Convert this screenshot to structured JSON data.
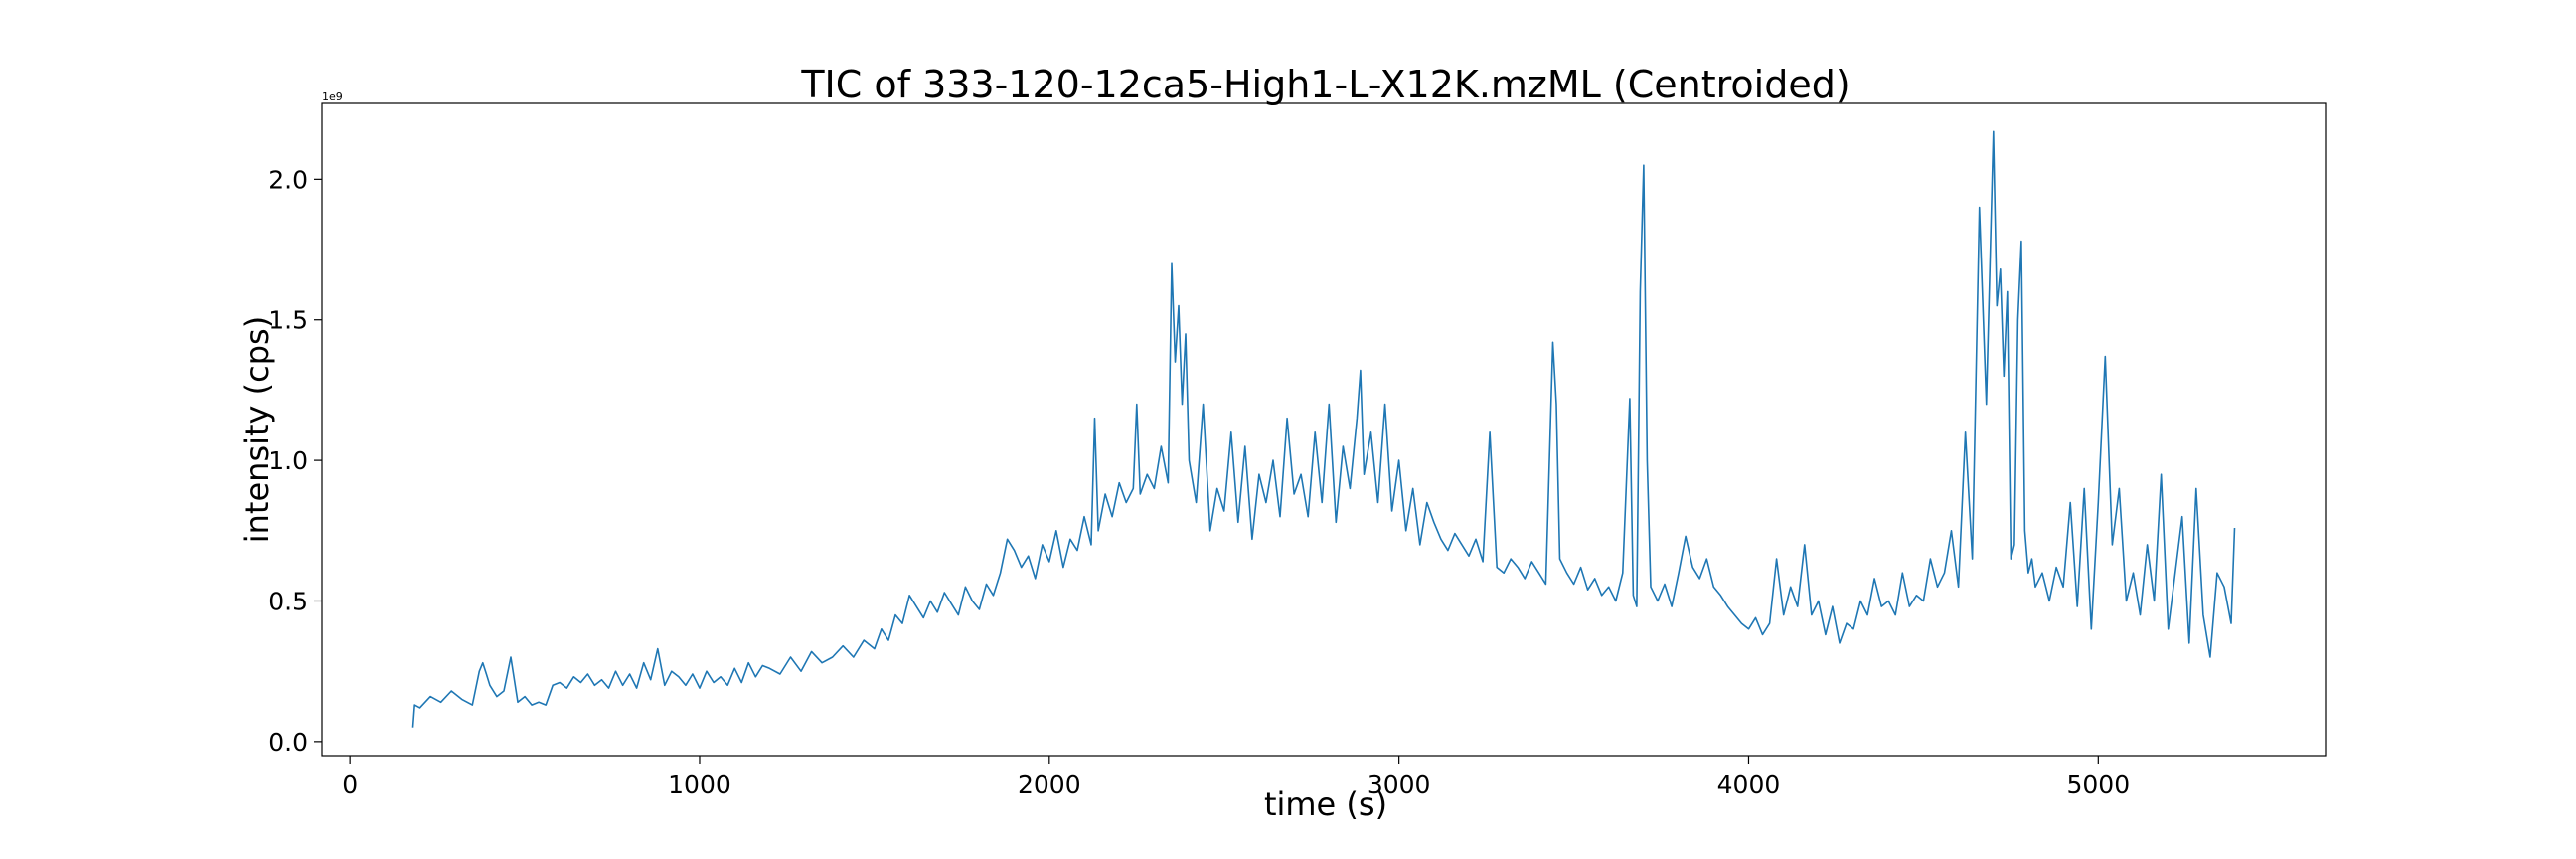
{
  "chart_data": {
    "type": "line",
    "title": "TIC of 333-120-12ca5-High1-L-X12K.mzML (Centroided)",
    "xlabel": "time (s)",
    "ylabel": "intensity (cps)",
    "y_offset_label": "1e9",
    "xlim": [
      -80,
      5650
    ],
    "ylim": [
      -0.05,
      2.27
    ],
    "x_ticks": [
      0,
      1000,
      2000,
      3000,
      4000,
      5000
    ],
    "x_tick_labels": [
      "0",
      "1000",
      "2000",
      "3000",
      "4000",
      "5000"
    ],
    "y_ticks": [
      0.0,
      0.5,
      1.0,
      1.5,
      2.0
    ],
    "y_tick_labels": [
      "0.0",
      "0.5",
      "1.0",
      "1.5",
      "2.0"
    ],
    "grid": false,
    "series": [
      {
        "color": "#1f77b4",
        "x": [
          180,
          185,
          200,
          230,
          260,
          290,
          320,
          350,
          370,
          380,
          390,
          400,
          420,
          440,
          460,
          480,
          500,
          520,
          540,
          560,
          580,
          600,
          620,
          640,
          660,
          680,
          700,
          720,
          740,
          760,
          780,
          800,
          820,
          840,
          860,
          880,
          900,
          920,
          940,
          960,
          980,
          1000,
          1020,
          1040,
          1060,
          1080,
          1100,
          1120,
          1140,
          1160,
          1180,
          1200,
          1230,
          1260,
          1290,
          1320,
          1350,
          1380,
          1410,
          1440,
          1470,
          1500,
          1520,
          1540,
          1560,
          1580,
          1600,
          1620,
          1640,
          1660,
          1680,
          1700,
          1720,
          1740,
          1760,
          1780,
          1800,
          1820,
          1840,
          1860,
          1880,
          1900,
          1920,
          1940,
          1960,
          1980,
          2000,
          2020,
          2040,
          2060,
          2080,
          2100,
          2120,
          2130,
          2140,
          2160,
          2180,
          2200,
          2220,
          2240,
          2250,
          2260,
          2280,
          2300,
          2320,
          2340,
          2350,
          2360,
          2370,
          2380,
          2390,
          2400,
          2420,
          2440,
          2460,
          2480,
          2500,
          2520,
          2540,
          2560,
          2580,
          2600,
          2620,
          2640,
          2660,
          2680,
          2700,
          2720,
          2740,
          2760,
          2780,
          2800,
          2820,
          2840,
          2860,
          2880,
          2890,
          2900,
          2920,
          2940,
          2960,
          2980,
          3000,
          3020,
          3040,
          3060,
          3080,
          3100,
          3120,
          3140,
          3160,
          3180,
          3200,
          3220,
          3240,
          3260,
          3280,
          3300,
          3320,
          3340,
          3360,
          3380,
          3400,
          3420,
          3440,
          3450,
          3460,
          3480,
          3500,
          3520,
          3540,
          3560,
          3580,
          3600,
          3620,
          3640,
          3660,
          3670,
          3680,
          3690,
          3700,
          3710,
          3720,
          3740,
          3760,
          3780,
          3800,
          3820,
          3840,
          3860,
          3880,
          3900,
          3920,
          3940,
          3960,
          3980,
          4000,
          4020,
          4040,
          4060,
          4080,
          4100,
          4120,
          4140,
          4160,
          4180,
          4200,
          4220,
          4240,
          4260,
          4280,
          4300,
          4320,
          4340,
          4360,
          4380,
          4400,
          4420,
          4440,
          4460,
          4480,
          4500,
          4520,
          4540,
          4560,
          4580,
          4600,
          4620,
          4640,
          4660,
          4680,
          4700,
          4710,
          4720,
          4730,
          4740,
          4750,
          4760,
          4770,
          4780,
          4790,
          4800,
          4810,
          4820,
          4840,
          4860,
          4880,
          4900,
          4920,
          4940,
          4960,
          4980,
          5000,
          5020,
          5040,
          5060,
          5080,
          5100,
          5120,
          5140,
          5160,
          5180,
          5200,
          5220,
          5240,
          5260,
          5280,
          5300,
          5320,
          5340,
          5360,
          5380,
          5390
        ],
        "y": [
          0.05,
          0.13,
          0.12,
          0.16,
          0.14,
          0.18,
          0.15,
          0.13,
          0.25,
          0.28,
          0.24,
          0.2,
          0.16,
          0.18,
          0.3,
          0.14,
          0.16,
          0.13,
          0.14,
          0.13,
          0.2,
          0.21,
          0.19,
          0.23,
          0.21,
          0.24,
          0.2,
          0.22,
          0.19,
          0.25,
          0.2,
          0.24,
          0.19,
          0.28,
          0.22,
          0.33,
          0.2,
          0.25,
          0.23,
          0.2,
          0.24,
          0.19,
          0.25,
          0.21,
          0.23,
          0.2,
          0.26,
          0.21,
          0.28,
          0.23,
          0.27,
          0.26,
          0.24,
          0.3,
          0.25,
          0.32,
          0.28,
          0.3,
          0.34,
          0.3,
          0.36,
          0.33,
          0.4,
          0.36,
          0.45,
          0.42,
          0.52,
          0.48,
          0.44,
          0.5,
          0.46,
          0.53,
          0.49,
          0.45,
          0.55,
          0.5,
          0.47,
          0.56,
          0.52,
          0.6,
          0.72,
          0.68,
          0.62,
          0.66,
          0.58,
          0.7,
          0.64,
          0.75,
          0.62,
          0.72,
          0.68,
          0.8,
          0.7,
          1.15,
          0.75,
          0.88,
          0.8,
          0.92,
          0.85,
          0.9,
          1.2,
          0.88,
          0.95,
          0.9,
          1.05,
          0.92,
          1.7,
          1.35,
          1.55,
          1.2,
          1.45,
          1.0,
          0.85,
          1.2,
          0.75,
          0.9,
          0.82,
          1.1,
          0.78,
          1.05,
          0.72,
          0.95,
          0.85,
          1.0,
          0.8,
          1.15,
          0.88,
          0.95,
          0.8,
          1.1,
          0.85,
          1.2,
          0.78,
          1.05,
          0.9,
          1.15,
          1.32,
          0.95,
          1.1,
          0.85,
          1.2,
          0.82,
          1.0,
          0.75,
          0.9,
          0.7,
          0.85,
          0.78,
          0.72,
          0.68,
          0.74,
          0.7,
          0.66,
          0.72,
          0.64,
          1.1,
          0.62,
          0.6,
          0.65,
          0.62,
          0.58,
          0.64,
          0.6,
          0.56,
          1.42,
          1.2,
          0.65,
          0.6,
          0.56,
          0.62,
          0.54,
          0.58,
          0.52,
          0.55,
          0.5,
          0.6,
          1.22,
          0.52,
          0.48,
          1.6,
          2.05,
          1.0,
          0.55,
          0.5,
          0.56,
          0.48,
          0.6,
          0.73,
          0.62,
          0.58,
          0.65,
          0.55,
          0.52,
          0.48,
          0.45,
          0.42,
          0.4,
          0.44,
          0.38,
          0.42,
          0.65,
          0.45,
          0.55,
          0.48,
          0.7,
          0.45,
          0.5,
          0.38,
          0.48,
          0.35,
          0.42,
          0.4,
          0.5,
          0.45,
          0.58,
          0.48,
          0.5,
          0.45,
          0.6,
          0.48,
          0.52,
          0.5,
          0.65,
          0.55,
          0.6,
          0.75,
          0.55,
          1.1,
          0.65,
          1.9,
          1.2,
          2.17,
          1.55,
          1.68,
          1.3,
          1.6,
          0.65,
          0.7,
          1.5,
          1.78,
          0.75,
          0.6,
          0.65,
          0.55,
          0.6,
          0.5,
          0.62,
          0.55,
          0.85,
          0.48,
          0.9,
          0.4,
          0.85,
          1.37,
          0.7,
          0.9,
          0.5,
          0.6,
          0.45,
          0.7,
          0.5,
          0.95,
          0.4,
          0.6,
          0.8,
          0.35,
          0.9,
          0.45,
          0.3,
          0.6,
          0.55,
          0.42,
          0.76
        ]
      }
    ]
  }
}
